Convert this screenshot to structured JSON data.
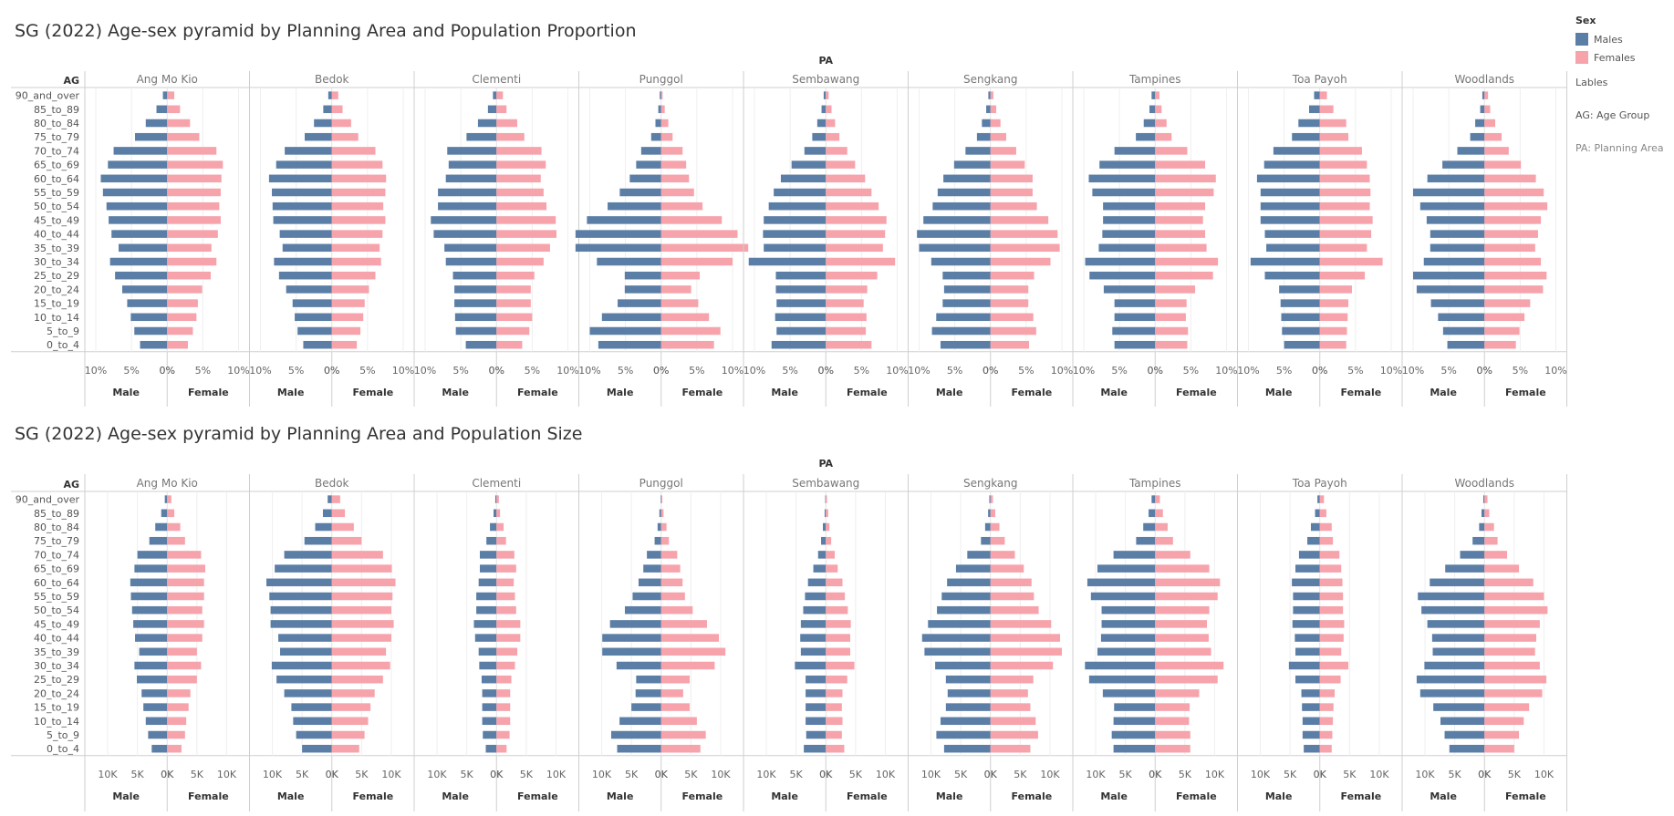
{
  "legend": {
    "title": "Sex",
    "items": [
      {
        "label": "Males",
        "color": "#5b7ea6"
      },
      {
        "label": "Females",
        "color": "#f6a3ab"
      }
    ],
    "notes": [
      "Lables",
      "AG: Age Group",
      "PA: Planning Area"
    ]
  },
  "chart_data": [
    {
      "type": "bar",
      "title": "SG (2022) Age-sex pyramid by Planning Area and Population Proportion",
      "column_header": "PA",
      "row_header": "AG",
      "xlabel_left": "Male",
      "xlabel_right": "Female",
      "max": 10,
      "unit": "%",
      "ticks": [
        "10%",
        "5%",
        "0%"
      ],
      "ticks_right": [
        "0%",
        "5%",
        "10%"
      ],
      "categories": [
        "90_and_over",
        "85_to_89",
        "80_to_84",
        "75_to_79",
        "70_to_74",
        "65_to_69",
        "60_to_64",
        "55_to_59",
        "50_to_54",
        "45_to_49",
        "40_to_44",
        "35_to_39",
        "30_to_34",
        "25_to_29",
        "20_to_24",
        "15_to_19",
        "10_to_14",
        "5_to_9",
        "0_to_4"
      ],
      "panels": [
        {
          "area": "Ang Mo Kio",
          "male": [
            0.6,
            1.5,
            3.0,
            4.5,
            7.5,
            8.3,
            9.3,
            9.0,
            8.5,
            8.2,
            7.8,
            6.8,
            8.0,
            7.3,
            6.3,
            5.6,
            5.1,
            4.6,
            3.8
          ],
          "female": [
            1.0,
            1.8,
            3.2,
            4.5,
            6.9,
            7.8,
            7.6,
            7.5,
            7.3,
            7.5,
            7.1,
            6.2,
            6.9,
            6.1,
            4.9,
            4.3,
            4.1,
            3.6,
            2.9
          ]
        },
        {
          "area": "Bedok",
          "male": [
            0.5,
            1.2,
            2.5,
            3.8,
            6.6,
            7.8,
            8.8,
            8.4,
            8.3,
            8.2,
            7.3,
            6.9,
            8.1,
            7.4,
            6.4,
            5.5,
            5.2,
            4.8,
            4.0
          ],
          "female": [
            0.9,
            1.5,
            2.7,
            3.7,
            6.1,
            7.1,
            7.6,
            7.5,
            7.2,
            7.5,
            7.1,
            6.7,
            6.9,
            6.1,
            5.2,
            4.6,
            4.4,
            4.0,
            3.5
          ]
        },
        {
          "area": "Clementi",
          "male": [
            0.5,
            1.2,
            2.6,
            4.2,
            6.9,
            6.7,
            7.1,
            8.2,
            8.2,
            9.2,
            8.8,
            7.3,
            7.1,
            6.1,
            5.9,
            5.9,
            5.8,
            5.7,
            4.3
          ],
          "female": [
            0.9,
            1.4,
            2.9,
            3.9,
            6.3,
            6.9,
            6.2,
            6.6,
            7.0,
            8.3,
            8.4,
            7.5,
            6.6,
            5.3,
            4.8,
            4.8,
            5.0,
            4.6,
            3.6
          ]
        },
        {
          "area": "Punggol",
          "male": [
            0.2,
            0.4,
            0.8,
            1.4,
            2.8,
            3.5,
            4.4,
            5.8,
            7.5,
            10.4,
            12.0,
            12.0,
            9.0,
            5.1,
            5.1,
            6.1,
            8.3,
            10.0,
            8.8
          ],
          "female": [
            0.2,
            0.5,
            1.0,
            1.6,
            3.0,
            3.5,
            3.9,
            4.6,
            5.8,
            8.5,
            10.7,
            12.2,
            10.0,
            5.4,
            4.2,
            5.2,
            6.7,
            8.3,
            7.4
          ]
        },
        {
          "area": "Sembawang",
          "male": [
            0.3,
            0.6,
            1.2,
            1.9,
            3.0,
            4.8,
            6.3,
            7.3,
            8.0,
            8.7,
            8.8,
            8.7,
            10.8,
            7.0,
            7.0,
            6.9,
            7.1,
            6.9,
            7.6
          ],
          "female": [
            0.4,
            0.8,
            1.3,
            1.9,
            3.0,
            4.1,
            5.5,
            6.4,
            7.4,
            8.5,
            8.3,
            8.0,
            9.7,
            7.2,
            5.8,
            5.3,
            5.7,
            5.6,
            6.4
          ]
        },
        {
          "area": "Sengkang",
          "male": [
            0.3,
            0.6,
            1.2,
            1.9,
            3.5,
            5.1,
            6.6,
            7.4,
            8.1,
            9.4,
            10.3,
            10.0,
            8.3,
            6.7,
            6.5,
            6.7,
            7.6,
            8.2,
            7.0
          ],
          "female": [
            0.4,
            0.8,
            1.4,
            2.2,
            3.6,
            4.8,
            5.9,
            5.9,
            6.5,
            8.1,
            9.4,
            9.7,
            8.4,
            6.1,
            5.3,
            5.3,
            6.0,
            6.4,
            5.4
          ]
        },
        {
          "area": "Tampines",
          "male": [
            0.5,
            0.8,
            1.6,
            2.7,
            5.7,
            7.8,
            9.3,
            8.8,
            7.3,
            7.3,
            7.4,
            7.9,
            9.8,
            9.2,
            7.2,
            5.7,
            5.7,
            6.0,
            5.7
          ],
          "female": [
            0.6,
            0.9,
            1.6,
            2.3,
            4.5,
            7.0,
            8.5,
            8.2,
            7.0,
            6.7,
            7.0,
            7.2,
            8.8,
            8.1,
            5.6,
            4.4,
            4.3,
            4.6,
            4.5
          ]
        },
        {
          "area": "Toa Payoh",
          "male": [
            0.8,
            1.5,
            3.0,
            3.9,
            6.5,
            7.8,
            8.8,
            8.3,
            8.3,
            8.3,
            7.7,
            7.5,
            9.7,
            7.7,
            5.7,
            5.5,
            5.4,
            5.3,
            5.0
          ],
          "female": [
            1.0,
            1.9,
            3.7,
            4.0,
            5.9,
            6.6,
            7.0,
            7.1,
            7.0,
            7.4,
            7.2,
            6.6,
            8.8,
            6.3,
            4.5,
            4.0,
            3.9,
            3.8,
            3.7
          ]
        },
        {
          "area": "Woodlands",
          "male": [
            0.3,
            0.6,
            1.3,
            2.0,
            3.8,
            5.9,
            8.0,
            10.0,
            9.0,
            8.1,
            7.6,
            7.6,
            8.5,
            10.0,
            9.5,
            7.5,
            6.5,
            5.8,
            5.2
          ],
          "female": [
            0.5,
            0.8,
            1.5,
            2.4,
            3.4,
            5.1,
            7.2,
            8.3,
            8.8,
            7.9,
            7.5,
            7.1,
            7.9,
            8.7,
            8.2,
            6.4,
            5.6,
            4.9,
            4.4
          ]
        }
      ]
    },
    {
      "type": "bar",
      "title": "SG (2022) Age-sex pyramid by Planning Area and Population Size",
      "column_header": "PA",
      "row_header": "AG",
      "xlabel_left": "Male",
      "xlabel_right": "Female",
      "max": 12000,
      "unit": "count",
      "ticks": [
        "10K",
        "5K",
        "0K"
      ],
      "ticks_right": [
        "0K",
        "5K",
        "10K"
      ],
      "categories": [
        "90_and_over",
        "85_to_89",
        "80_to_84",
        "75_to_79",
        "70_to_74",
        "65_to_69",
        "60_to_64",
        "55_to_59",
        "50_to_54",
        "45_to_49",
        "40_to_44",
        "35_to_39",
        "30_to_34",
        "25_to_29",
        "20_to_24",
        "15_to_19",
        "10_to_14",
        "5_to_9",
        "0_to_4"
      ],
      "panels": [
        {
          "area": "Ang Mo Kio",
          "male": [
            400,
            1000,
            2000,
            3000,
            5000,
            5500,
            6200,
            6100,
            5900,
            5700,
            5400,
            4700,
            5500,
            5100,
            4300,
            4000,
            3600,
            3200,
            2600
          ],
          "female": [
            700,
            1200,
            2200,
            3000,
            5700,
            6400,
            6200,
            6200,
            5900,
            6200,
            5900,
            5000,
            5700,
            5000,
            3900,
            3600,
            3200,
            3000,
            2400
          ]
        },
        {
          "area": "Bedok",
          "male": [
            700,
            1500,
            2800,
            4600,
            8000,
            9600,
            11000,
            10500,
            10300,
            10300,
            9000,
            8700,
            10100,
            9300,
            8000,
            6800,
            6500,
            6000,
            5000
          ],
          "female": [
            1400,
            2200,
            3700,
            5000,
            8600,
            10100,
            10700,
            10200,
            10000,
            10400,
            10000,
            9100,
            9800,
            8600,
            7200,
            6500,
            6100,
            5500,
            4600
          ]
        },
        {
          "area": "Clementi",
          "male": [
            200,
            500,
            1100,
            1700,
            2800,
            2800,
            3000,
            3400,
            3400,
            3800,
            3600,
            3000,
            2900,
            2500,
            2400,
            2400,
            2400,
            2300,
            1800
          ],
          "female": [
            400,
            600,
            1200,
            1600,
            3000,
            3300,
            2900,
            3100,
            3300,
            4000,
            4000,
            3500,
            3100,
            2500,
            2300,
            2300,
            2300,
            2200,
            1700
          ]
        },
        {
          "area": "Punggol",
          "male": [
            100,
            300,
            600,
            1100,
            2400,
            3000,
            3800,
            4800,
            6100,
            8600,
            9900,
            9900,
            7500,
            4200,
            4300,
            5000,
            7000,
            8400,
            7400
          ],
          "female": [
            200,
            400,
            900,
            1300,
            2700,
            3200,
            3600,
            4000,
            5300,
            7700,
            9700,
            10800,
            9000,
            4800,
            3700,
            4800,
            6000,
            7500,
            6600
          ]
        },
        {
          "area": "Sembawang",
          "male": [
            100,
            200,
            500,
            800,
            1300,
            2100,
            3000,
            3500,
            3800,
            4200,
            4300,
            4200,
            5200,
            3400,
            3400,
            3400,
            3400,
            3300,
            3700
          ],
          "female": [
            200,
            400,
            600,
            900,
            1500,
            2000,
            2800,
            3200,
            3700,
            4200,
            4100,
            4100,
            4800,
            3600,
            2800,
            2700,
            2800,
            2700,
            3100
          ]
        },
        {
          "area": "Sengkang",
          "male": [
            200,
            400,
            900,
            1600,
            3900,
            5800,
            7300,
            8200,
            9000,
            10500,
            11500,
            11100,
            9300,
            7500,
            7200,
            7500,
            8400,
            9100,
            7800
          ],
          "female": [
            400,
            800,
            1500,
            2400,
            4100,
            5600,
            6900,
            7300,
            8100,
            10200,
            11700,
            12000,
            10500,
            7200,
            6300,
            6700,
            7600,
            8000,
            6700
          ]
        },
        {
          "area": "Tampines",
          "male": [
            600,
            1100,
            2000,
            3200,
            7000,
            9700,
            11400,
            10800,
            9000,
            9000,
            9100,
            9700,
            11800,
            11100,
            8800,
            6900,
            7000,
            7300,
            7000
          ],
          "female": [
            800,
            1300,
            2100,
            3000,
            5900,
            9100,
            10900,
            10500,
            9100,
            8700,
            9000,
            9400,
            11500,
            10500,
            7400,
            5800,
            5700,
            5900,
            5900
          ]
        },
        {
          "area": "Toa Payoh",
          "male": [
            400,
            800,
            1500,
            2100,
            3500,
            4100,
            4700,
            4500,
            4500,
            4600,
            4200,
            4100,
            5200,
            4100,
            3100,
            3000,
            2900,
            2900,
            2700
          ],
          "female": [
            700,
            1100,
            2000,
            2200,
            3300,
            3600,
            3800,
            3900,
            3900,
            4100,
            4000,
            3600,
            4800,
            3500,
            2500,
            2300,
            2200,
            2100,
            2000
          ]
        },
        {
          "area": "Woodlands",
          "male": [
            200,
            500,
            900,
            2000,
            4100,
            6600,
            9200,
            11200,
            10600,
            9600,
            8800,
            8700,
            10100,
            11400,
            10800,
            8600,
            7400,
            6700,
            5900
          ],
          "female": [
            500,
            800,
            1600,
            2200,
            3800,
            5800,
            8200,
            10000,
            10600,
            9300,
            8700,
            8500,
            9300,
            10400,
            9700,
            7500,
            6600,
            5800,
            5000
          ]
        }
      ]
    }
  ]
}
